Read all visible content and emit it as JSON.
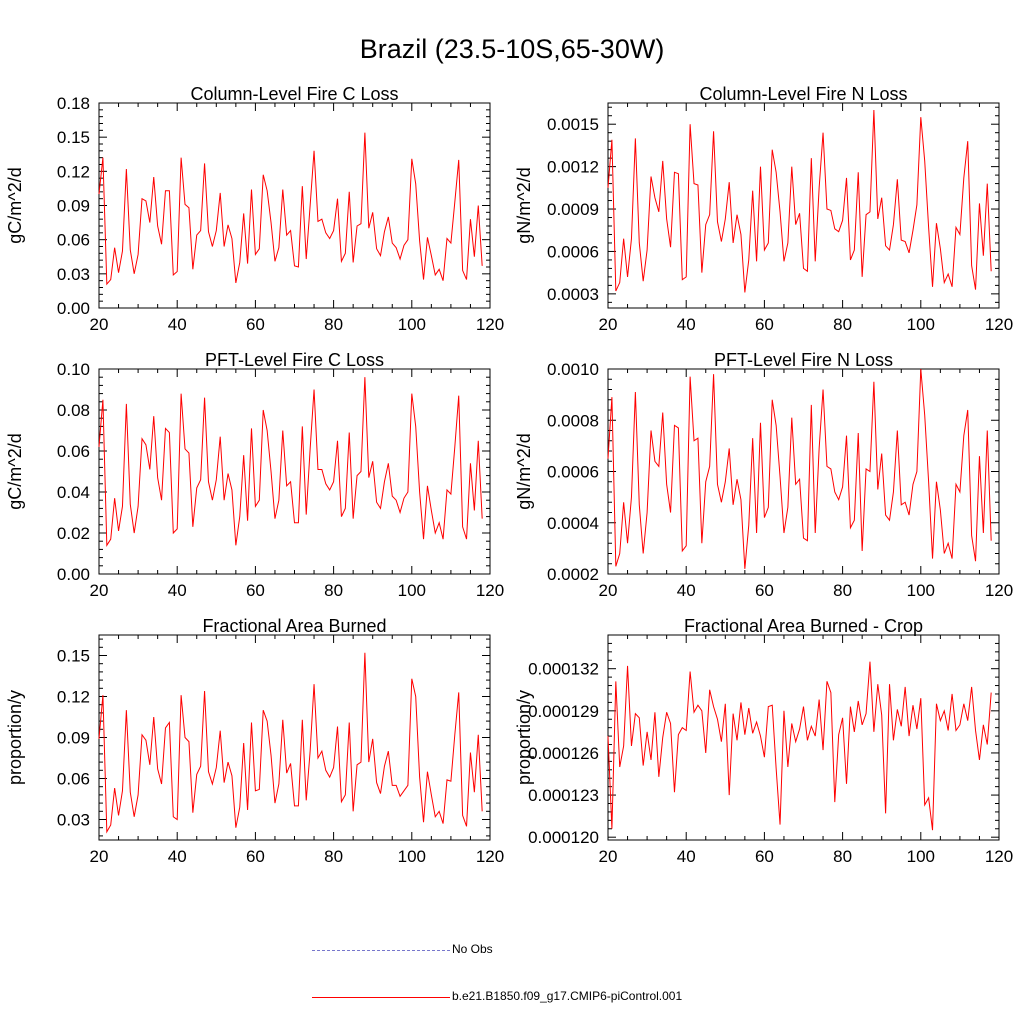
{
  "page": {
    "title": "Brazil (23.5-10S,65-30W)"
  },
  "colors": {
    "series": "#ff0000",
    "obs": "#7777cc",
    "axis": "#000000"
  },
  "legend": {
    "items": [
      {
        "label": "No Obs",
        "style": "dashed",
        "color": "#7777cc"
      },
      {
        "label": "b.e21.B1850.f09_g17.CMIP6-piControl.001",
        "style": "solid",
        "color": "#ff0000"
      }
    ]
  },
  "chart_data": [
    {
      "type": "line",
      "title": "Column-Level Fire C Loss",
      "ylabel": "gC/m^2/d",
      "xlim": [
        20,
        120
      ],
      "ylim": [
        0,
        0.18
      ],
      "xticks": [
        20,
        40,
        60,
        80,
        100,
        120
      ],
      "xtick_labels": [
        "20",
        "40",
        "60",
        "80",
        "100",
        "120"
      ],
      "yticks": [
        0,
        0.03,
        0.06,
        0.09,
        0.12,
        0.15,
        0.18
      ],
      "ytick_labels": [
        "0.00",
        "0.03",
        "0.06",
        "0.09",
        "0.12",
        "0.15",
        "0.18"
      ],
      "x_start": 20,
      "series": [
        {
          "name": "b.e21.B1850.f09_g17.CMIP6-piControl.001",
          "values": [
            0.1,
            0.132,
            0.021,
            0.025,
            0.053,
            0.031,
            0.05,
            0.122,
            0.051,
            0.03,
            0.047,
            0.096,
            0.094,
            0.075,
            0.115,
            0.072,
            0.056,
            0.103,
            0.103,
            0.029,
            0.032,
            0.132,
            0.091,
            0.088,
            0.034,
            0.064,
            0.068,
            0.127,
            0.067,
            0.054,
            0.068,
            0.101,
            0.054,
            0.073,
            0.061,
            0.022,
            0.04,
            0.083,
            0.039,
            0.104,
            0.047,
            0.052,
            0.117,
            0.103,
            0.075,
            0.041,
            0.053,
            0.104,
            0.064,
            0.068,
            0.037,
            0.036,
            0.107,
            0.043,
            0.09,
            0.138,
            0.076,
            0.078,
            0.066,
            0.061,
            0.068,
            0.096,
            0.041,
            0.048,
            0.102,
            0.04,
            0.072,
            0.074,
            0.154,
            0.07,
            0.084,
            0.052,
            0.046,
            0.067,
            0.08,
            0.057,
            0.053,
            0.043,
            0.055,
            0.06,
            0.131,
            0.109,
            0.059,
            0.025,
            0.062,
            0.046,
            0.029,
            0.034,
            0.024,
            0.061,
            0.057,
            0.093,
            0.13,
            0.033,
            0.025,
            0.078,
            0.045,
            0.09,
            0.037
          ]
        }
      ]
    },
    {
      "type": "line",
      "title": "Column-Level Fire N Loss",
      "ylabel": "gN/m^2/d",
      "xlim": [
        20,
        120
      ],
      "ylim": [
        0.0002,
        0.00165
      ],
      "xticks": [
        20,
        40,
        60,
        80,
        100,
        120
      ],
      "xtick_labels": [
        "20",
        "40",
        "60",
        "80",
        "100",
        "120"
      ],
      "yticks": [
        0.0003,
        0.0006,
        0.0009,
        0.0012,
        0.0015
      ],
      "ytick_labels": [
        "0.0003",
        "0.0006",
        "0.0009",
        "0.0012",
        "0.0015"
      ],
      "x_start": 20,
      "series": [
        {
          "name": "b.e21.B1850.f09_g17.CMIP6-piControl.001",
          "values": [
            0.00105,
            0.00139,
            0.00032,
            0.00038,
            0.00069,
            0.00042,
            0.00069,
            0.0014,
            0.00066,
            0.00039,
            0.00061,
            0.00113,
            0.00098,
            0.00088,
            0.00124,
            0.00083,
            0.00063,
            0.00116,
            0.00115,
            0.0004,
            0.00042,
            0.0015,
            0.00108,
            0.00107,
            0.00045,
            0.00079,
            0.00086,
            0.00145,
            0.00081,
            0.00067,
            0.00083,
            0.00109,
            0.00066,
            0.00086,
            0.00072,
            0.00031,
            0.00054,
            0.00103,
            0.00053,
            0.0012,
            0.00061,
            0.00066,
            0.00132,
            0.00116,
            0.00088,
            0.00053,
            0.00066,
            0.0012,
            0.00079,
            0.00087,
            0.00048,
            0.00046,
            0.00126,
            0.00053,
            0.00105,
            0.00144,
            0.0009,
            0.00089,
            0.00076,
            0.00074,
            0.00082,
            0.00112,
            0.00054,
            0.00061,
            0.00116,
            0.00042,
            0.00086,
            0.00088,
            0.0016,
            0.00083,
            0.00098,
            0.00064,
            0.00061,
            0.00079,
            0.00111,
            0.00068,
            0.00067,
            0.00059,
            0.00075,
            0.00093,
            0.00155,
            0.00124,
            0.00077,
            0.00035,
            0.0008,
            0.00062,
            0.00038,
            0.00044,
            0.00035,
            0.00077,
            0.00072,
            0.00112,
            0.00138,
            0.0005,
            0.00033,
            0.00094,
            0.00057,
            0.00108,
            0.00046
          ]
        }
      ]
    },
    {
      "type": "line",
      "title": "PFT-Level Fire C Loss",
      "ylabel": "gC/m^2/d",
      "xlim": [
        20,
        120
      ],
      "ylim": [
        0,
        0.1
      ],
      "xticks": [
        20,
        40,
        60,
        80,
        100,
        120
      ],
      "xtick_labels": [
        "20",
        "40",
        "60",
        "80",
        "100",
        "120"
      ],
      "yticks": [
        0,
        0.02,
        0.04,
        0.06,
        0.08,
        0.1
      ],
      "ytick_labels": [
        "0.00",
        "0.02",
        "0.04",
        "0.06",
        "0.08",
        "0.10"
      ],
      "x_start": 20,
      "series": [
        {
          "name": "b.e21.B1850.f09_g17.CMIP6-piControl.001",
          "values": [
            0.062,
            0.085,
            0.014,
            0.017,
            0.037,
            0.021,
            0.033,
            0.083,
            0.034,
            0.02,
            0.033,
            0.066,
            0.063,
            0.051,
            0.077,
            0.047,
            0.036,
            0.071,
            0.069,
            0.02,
            0.022,
            0.088,
            0.061,
            0.059,
            0.023,
            0.042,
            0.046,
            0.086,
            0.045,
            0.036,
            0.046,
            0.067,
            0.036,
            0.049,
            0.041,
            0.014,
            0.028,
            0.058,
            0.026,
            0.071,
            0.033,
            0.036,
            0.08,
            0.07,
            0.05,
            0.027,
            0.036,
            0.07,
            0.043,
            0.045,
            0.025,
            0.025,
            0.072,
            0.029,
            0.061,
            0.09,
            0.051,
            0.051,
            0.044,
            0.041,
            0.045,
            0.065,
            0.028,
            0.032,
            0.069,
            0.027,
            0.048,
            0.05,
            0.096,
            0.047,
            0.055,
            0.035,
            0.032,
            0.045,
            0.054,
            0.038,
            0.036,
            0.03,
            0.037,
            0.04,
            0.088,
            0.072,
            0.04,
            0.017,
            0.043,
            0.031,
            0.02,
            0.025,
            0.017,
            0.041,
            0.039,
            0.062,
            0.087,
            0.023,
            0.017,
            0.054,
            0.031,
            0.065,
            0.027
          ]
        }
      ]
    },
    {
      "type": "line",
      "title": "PFT-Level Fire N Loss",
      "ylabel": "gN/m^2/d",
      "xlim": [
        20,
        120
      ],
      "ylim": [
        0.0002,
        0.001
      ],
      "xticks": [
        20,
        40,
        60,
        80,
        100,
        120
      ],
      "xtick_labels": [
        "20",
        "40",
        "60",
        "80",
        "100",
        "120"
      ],
      "yticks": [
        0.0002,
        0.0004,
        0.0006,
        0.0008,
        0.001
      ],
      "ytick_labels": [
        "0.0002",
        "0.0004",
        "0.0006",
        "0.0008",
        "0.0010"
      ],
      "x_start": 20,
      "series": [
        {
          "name": "b.e21.B1850.f09_g17.CMIP6-piControl.001",
          "values": [
            0.00065,
            0.00089,
            0.00023,
            0.00028,
            0.00048,
            0.00032,
            0.0005,
            0.00091,
            0.00047,
            0.00028,
            0.00044,
            0.00076,
            0.00064,
            0.00062,
            0.00083,
            0.00055,
            0.00044,
            0.00078,
            0.00077,
            0.00029,
            0.00031,
            0.00097,
            0.00072,
            0.00073,
            0.00032,
            0.00056,
            0.00062,
            0.00098,
            0.00055,
            0.00048,
            0.00056,
            0.00069,
            0.00047,
            0.00057,
            0.00049,
            0.00022,
            0.00039,
            0.00073,
            0.00036,
            0.00079,
            0.00042,
            0.00046,
            0.00088,
            0.00078,
            0.00058,
            0.00036,
            0.00046,
            0.00081,
            0.00055,
            0.00057,
            0.00034,
            0.00033,
            0.00086,
            0.00036,
            0.00069,
            0.00092,
            0.00062,
            0.00061,
            0.00052,
            0.00049,
            0.00054,
            0.00074,
            0.00038,
            0.00041,
            0.00075,
            0.00029,
            0.00061,
            0.0006,
            0.00095,
            0.00053,
            0.00067,
            0.00043,
            0.00041,
            0.00052,
            0.00076,
            0.00047,
            0.00048,
            0.00043,
            0.00055,
            0.0006,
            0.001,
            0.00082,
            0.00056,
            0.00026,
            0.00056,
            0.00045,
            0.00028,
            0.00032,
            0.00026,
            0.00055,
            0.00052,
            0.00074,
            0.00084,
            0.00035,
            0.00025,
            0.00066,
            0.00036,
            0.00076,
            0.00033
          ]
        }
      ]
    },
    {
      "type": "line",
      "title": "Fractional Area Burned",
      "ylabel": "proportion/y",
      "xlim": [
        20,
        120
      ],
      "ylim": [
        0.015,
        0.165
      ],
      "xticks": [
        20,
        40,
        60,
        80,
        100,
        120
      ],
      "xtick_labels": [
        "20",
        "40",
        "60",
        "80",
        "100",
        "120"
      ],
      "yticks": [
        0.03,
        0.06,
        0.09,
        0.12,
        0.15
      ],
      "ytick_labels": [
        "0.03",
        "0.06",
        "0.09",
        "0.12",
        "0.15"
      ],
      "x_start": 20,
      "series": [
        {
          "name": "b.e21.B1850.f09_g17.CMIP6-piControl.001",
          "values": [
            0.089,
            0.121,
            0.021,
            0.026,
            0.053,
            0.033,
            0.051,
            0.11,
            0.05,
            0.032,
            0.048,
            0.092,
            0.088,
            0.07,
            0.105,
            0.067,
            0.056,
            0.097,
            0.101,
            0.032,
            0.03,
            0.121,
            0.09,
            0.087,
            0.035,
            0.063,
            0.069,
            0.124,
            0.065,
            0.056,
            0.068,
            0.095,
            0.057,
            0.072,
            0.062,
            0.024,
            0.039,
            0.086,
            0.037,
            0.101,
            0.051,
            0.052,
            0.11,
            0.102,
            0.077,
            0.042,
            0.056,
            0.103,
            0.064,
            0.071,
            0.04,
            0.04,
            0.103,
            0.044,
            0.08,
            0.129,
            0.075,
            0.08,
            0.066,
            0.061,
            0.068,
            0.098,
            0.043,
            0.048,
            0.101,
            0.036,
            0.07,
            0.072,
            0.152,
            0.072,
            0.089,
            0.057,
            0.049,
            0.069,
            0.08,
            0.055,
            0.055,
            0.047,
            0.051,
            0.055,
            0.133,
            0.12,
            0.061,
            0.028,
            0.065,
            0.048,
            0.032,
            0.036,
            0.027,
            0.059,
            0.058,
            0.092,
            0.123,
            0.033,
            0.025,
            0.079,
            0.05,
            0.092,
            0.036
          ]
        }
      ]
    },
    {
      "type": "line",
      "title": "Fractional Area Burned - Crop",
      "ylabel": "proportion/y",
      "xlim": [
        20,
        120
      ],
      "ylim": [
        0.0001198,
        0.0001344
      ],
      "xticks": [
        20,
        40,
        60,
        80,
        100,
        120
      ],
      "xtick_labels": [
        "20",
        "40",
        "60",
        "80",
        "100",
        "120"
      ],
      "yticks": [
        0.00012,
        0.000123,
        0.000126,
        0.000129,
        0.000132
      ],
      "ytick_labels": [
        "0.000120",
        "0.000123",
        "0.000126",
        "0.000129",
        "0.000132"
      ],
      "x_start": 20,
      "series": [
        {
          "name": "b.e21.B1850.f09_g17.CMIP6-piControl.001",
          "values": [
            0.0001272,
            0.0001206,
            0.0001311,
            0.000125,
            0.0001265,
            0.0001322,
            0.0001265,
            0.0001288,
            0.0001285,
            0.0001251,
            0.0001275,
            0.0001255,
            0.0001289,
            0.0001243,
            0.0001271,
            0.0001289,
            0.0001281,
            0.0001232,
            0.0001273,
            0.0001278,
            0.0001276,
            0.0001318,
            0.0001289,
            0.0001294,
            0.000129,
            0.000126,
            0.0001305,
            0.0001293,
            0.0001284,
            0.0001268,
            0.0001295,
            0.000123,
            0.0001288,
            0.0001269,
            0.0001296,
            0.0001273,
            0.0001292,
            0.0001274,
            0.0001282,
            0.0001272,
            0.0001257,
            0.0001293,
            0.0001294,
            0.0001249,
            0.0001209,
            0.000129,
            0.000125,
            0.0001281,
            0.0001268,
            0.0001277,
            0.0001293,
            0.0001269,
            0.0001279,
            0.0001272,
            0.0001298,
            0.0001262,
            0.0001311,
            0.0001303,
            0.0001225,
            0.0001273,
            0.0001285,
            0.0001238,
            0.0001293,
            0.0001275,
            0.0001297,
            0.000128,
            0.0001288,
            0.0001325,
            0.0001275,
            0.0001309,
            0.0001287,
            0.0001217,
            0.0001309,
            0.0001269,
            0.0001291,
            0.0001279,
            0.0001307,
            0.0001272,
            0.0001294,
            0.0001277,
            0.0001299,
            0.0001223,
            0.0001228,
            0.0001205,
            0.0001295,
            0.0001283,
            0.000129,
            0.0001276,
            0.0001302,
            0.0001276,
            0.000128,
            0.0001295,
            0.0001283,
            0.0001307,
            0.0001276,
            0.0001255,
            0.000128,
            0.0001266,
            0.0001303
          ]
        }
      ]
    }
  ]
}
